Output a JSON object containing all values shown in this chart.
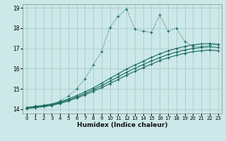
{
  "xlabel": "Humidex (Indice chaleur)",
  "bg_color": "#cce8e8",
  "grid_color": "#aacccc",
  "line_color": "#1a6b5e",
  "xlim": [
    -0.5,
    23.5
  ],
  "ylim": [
    13.8,
    19.2
  ],
  "yticks": [
    14,
    15,
    16,
    17,
    18,
    19
  ],
  "xticks": [
    0,
    1,
    2,
    3,
    4,
    5,
    6,
    7,
    8,
    9,
    10,
    11,
    12,
    13,
    14,
    15,
    16,
    17,
    18,
    19,
    20,
    21,
    22,
    23
  ],
  "series1_x": [
    0,
    1,
    2,
    3,
    4,
    5,
    6,
    7,
    8,
    9,
    10,
    11,
    12,
    13,
    14,
    15,
    16,
    17,
    18,
    19,
    20,
    21,
    22,
    23
  ],
  "series1_y": [
    14.1,
    14.15,
    14.2,
    14.25,
    14.4,
    14.65,
    15.0,
    15.5,
    16.2,
    16.85,
    18.05,
    18.6,
    18.95,
    17.95,
    17.85,
    17.8,
    18.65,
    17.85,
    18.0,
    17.35,
    17.1,
    17.1,
    17.15,
    17.2
  ],
  "series2_x": [
    0,
    1,
    2,
    3,
    4,
    5,
    6,
    7,
    8,
    9,
    10,
    11,
    12,
    13,
    14,
    15,
    16,
    17,
    18,
    19,
    20,
    21,
    22,
    23
  ],
  "series2_y": [
    14.07,
    14.12,
    14.18,
    14.25,
    14.36,
    14.5,
    14.67,
    14.85,
    15.05,
    15.28,
    15.52,
    15.75,
    15.98,
    16.18,
    16.37,
    16.56,
    16.73,
    16.88,
    17.0,
    17.1,
    17.18,
    17.22,
    17.25,
    17.2
  ],
  "series3_x": [
    0,
    1,
    2,
    3,
    4,
    5,
    6,
    7,
    8,
    9,
    10,
    11,
    12,
    13,
    14,
    15,
    16,
    17,
    18,
    19,
    20,
    21,
    22,
    23
  ],
  "series3_y": [
    14.05,
    14.1,
    14.15,
    14.22,
    14.32,
    14.45,
    14.6,
    14.77,
    14.96,
    15.16,
    15.38,
    15.6,
    15.82,
    16.02,
    16.2,
    16.38,
    16.55,
    16.7,
    16.82,
    16.92,
    17.0,
    17.05,
    17.08,
    17.05
  ],
  "series4_x": [
    0,
    1,
    2,
    3,
    4,
    5,
    6,
    7,
    8,
    9,
    10,
    11,
    12,
    13,
    14,
    15,
    16,
    17,
    18,
    19,
    20,
    21,
    22,
    23
  ],
  "series4_y": [
    14.03,
    14.07,
    14.12,
    14.18,
    14.28,
    14.4,
    14.55,
    14.7,
    14.88,
    15.06,
    15.26,
    15.47,
    15.68,
    15.87,
    16.05,
    16.23,
    16.4,
    16.54,
    16.66,
    16.76,
    16.84,
    16.88,
    16.92,
    16.88
  ]
}
